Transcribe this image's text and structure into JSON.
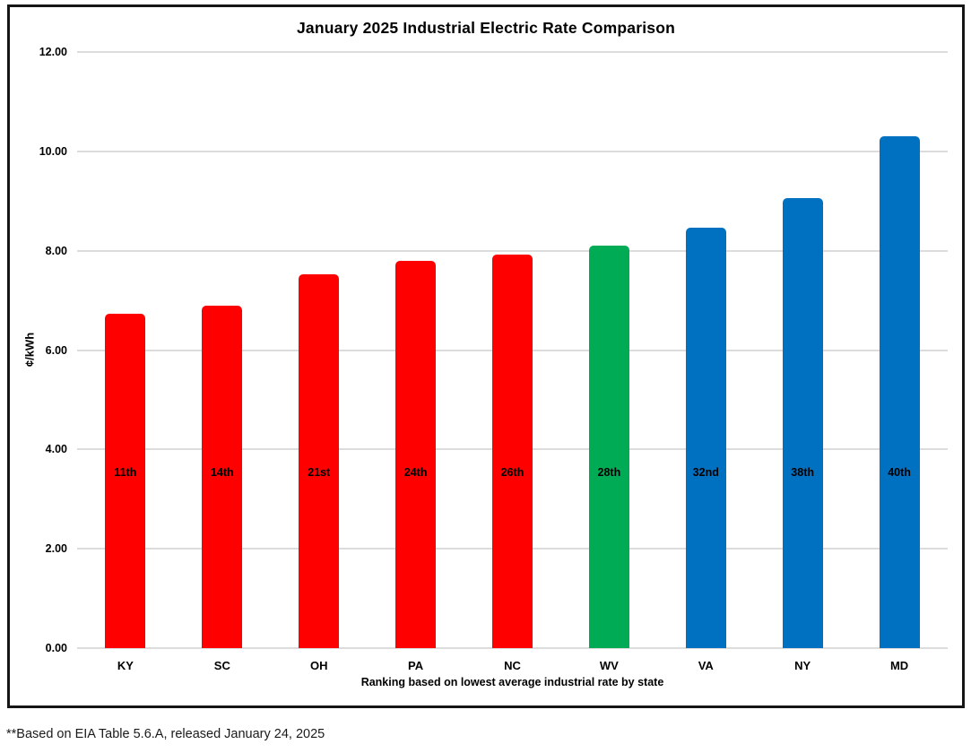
{
  "chart_data": {
    "type": "bar",
    "title": "January 2025 Industrial Electric Rate Comparison",
    "ylabel": "¢/kWh",
    "xlabel": "Ranking based on lowest average industrial rate by state",
    "categories": [
      "KY",
      "SC",
      "OH",
      "PA",
      "NC",
      "WV",
      "VA",
      "NY",
      "MD"
    ],
    "values": [
      6.73,
      6.89,
      7.52,
      7.79,
      7.92,
      8.1,
      8.47,
      9.06,
      10.31
    ],
    "bar_labels": [
      "11th",
      "14th",
      "21st",
      "24th",
      "26th",
      "28th",
      "32nd",
      "38th",
      "40th"
    ],
    "bar_colors": [
      "#fe0000",
      "#fe0000",
      "#fe0000",
      "#fe0000",
      "#fe0000",
      "#00ab55",
      "#0070c0",
      "#0070c0",
      "#0070c0"
    ],
    "ylim": [
      0,
      12
    ],
    "ytick_step": 2,
    "ytick_labels": [
      "0.00",
      "2.00",
      "4.00",
      "6.00",
      "8.00",
      "10.00",
      "12.00"
    ],
    "grid": "horizontal",
    "gridline_color": "#dcdcdc",
    "legend": "none",
    "footnote": "**Based on EIA Table 5.6.A, released January 24, 2025"
  }
}
